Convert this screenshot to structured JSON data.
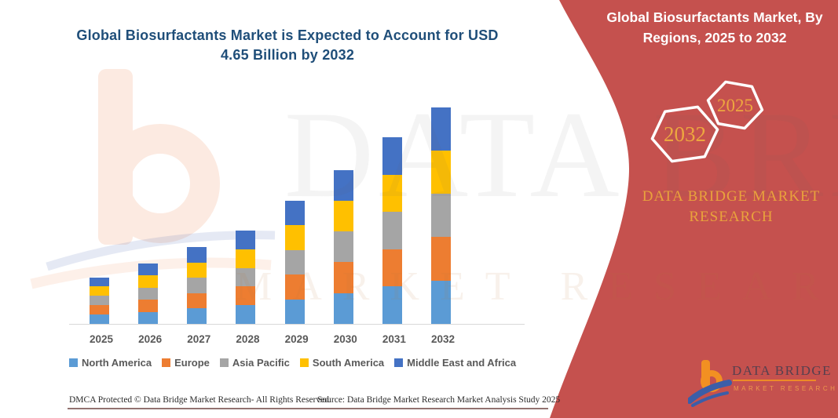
{
  "title": "Global Biosurfactants Market is Expected to Account for USD 4.65 Billion by 2032",
  "panel": {
    "title": "Global Biosurfactants Market, By Regions, 2025 to 2032",
    "badges": [
      {
        "label": "2032"
      },
      {
        "label": "2025"
      }
    ],
    "brand_caption": "DATA BRIDGE MARKET RESEARCH",
    "background_color": "#c5514e",
    "gold_color": "#e9a23c"
  },
  "watermark": {
    "big_text": "DATA BRIDGE",
    "sub_text": "MARKET RESEARCH"
  },
  "logo": {
    "name": "DATA BRIDGE",
    "tagline": "MARKET RESEARCH"
  },
  "footer": {
    "left": "DMCA Protected © Data Bridge Market Research-  All Rights Reserved.",
    "right": "Source: Data Bridge Market Research  Market Analysis Study 2025"
  },
  "chart_data": {
    "type": "bar",
    "stacked": true,
    "unit": "USD Billion",
    "title": "Global Biosurfactants Market is Expected to Account for USD 4.65 Billion by 2032",
    "xlabel": "",
    "ylabel": "",
    "y_axis_visible": false,
    "grid": false,
    "legend_position": "bottom",
    "categories": [
      "2025",
      "2026",
      "2027",
      "2028",
      "2029",
      "2030",
      "2031",
      "2032"
    ],
    "series": [
      {
        "name": "North America",
        "color": "#5b9bd5",
        "values": [
          0.2,
          0.26,
          0.33,
          0.4,
          0.53,
          0.66,
          0.8,
          0.93
        ]
      },
      {
        "name": "Europe",
        "color": "#ed7d31",
        "values": [
          0.2,
          0.26,
          0.33,
          0.4,
          0.53,
          0.66,
          0.8,
          0.93
        ]
      },
      {
        "name": "Asia Pacific",
        "color": "#a5a5a5",
        "values": [
          0.2,
          0.26,
          0.33,
          0.4,
          0.53,
          0.66,
          0.8,
          0.93
        ]
      },
      {
        "name": "South America",
        "color": "#ffc000",
        "values": [
          0.2,
          0.26,
          0.33,
          0.4,
          0.53,
          0.66,
          0.8,
          0.93
        ]
      },
      {
        "name": "Middle East and Africa",
        "color": "#4472c4",
        "values": [
          0.2,
          0.26,
          0.33,
          0.4,
          0.53,
          0.66,
          0.8,
          0.93
        ]
      }
    ],
    "totals": [
      1.0,
      1.3,
      1.65,
      2.0,
      2.65,
      3.3,
      4.0,
      4.65
    ],
    "ylim": [
      0,
      4.65
    ]
  }
}
